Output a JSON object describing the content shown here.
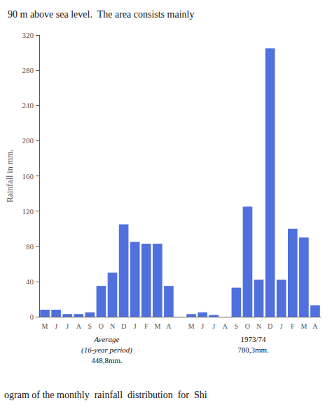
{
  "chart_data": {
    "type": "bar",
    "title": "90 m above sea level.  The area consists mainly",
    "subtitle": "ogram of the monthly  rainfall  distribution  for  Shi",
    "categories": [
      "M",
      "J",
      "J",
      "A",
      "S",
      "O",
      "N",
      "D",
      "J",
      "F",
      "M",
      "A",
      "M",
      "J",
      "J",
      "A",
      "S",
      "O",
      "N",
      "D",
      "J",
      "F",
      "M",
      "A"
    ],
    "values": [
      8,
      8,
      3,
      3,
      5,
      35,
      50,
      105,
      85,
      83,
      83,
      35,
      3,
      5,
      2,
      0,
      33,
      125,
      42,
      305,
      42,
      100,
      90,
      13
    ],
    "ylabel": "Rainfall in mm.",
    "ylim": [
      0,
      320
    ],
    "yticks": [
      0,
      40,
      80,
      120,
      160,
      200,
      240,
      280,
      320
    ],
    "annotations": [
      [
        "Average",
        "(16-year period)",
        "448,8mm."
      ],
      [
        "1973/74",
        "780,3mm."
      ]
    ],
    "grid": false
  }
}
